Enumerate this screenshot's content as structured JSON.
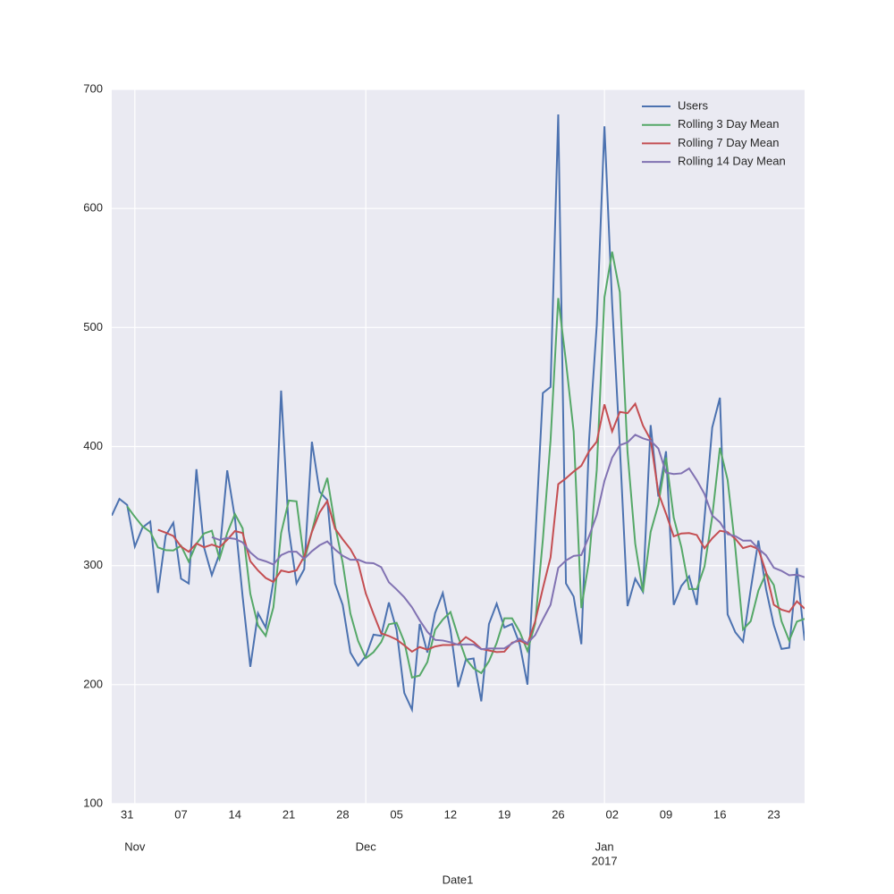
{
  "chart_data": {
    "type": "line",
    "xlabel": "Date1",
    "x": [
      "2016-10-29",
      "2016-10-30",
      "2016-10-31",
      "2016-11-01",
      "2016-11-02",
      "2016-11-03",
      "2016-11-04",
      "2016-11-05",
      "2016-11-06",
      "2016-11-07",
      "2016-11-08",
      "2016-11-09",
      "2016-11-10",
      "2016-11-11",
      "2016-11-12",
      "2016-11-13",
      "2016-11-14",
      "2016-11-15",
      "2016-11-16",
      "2016-11-17",
      "2016-11-18",
      "2016-11-19",
      "2016-11-20",
      "2016-11-21",
      "2016-11-22",
      "2016-11-23",
      "2016-11-24",
      "2016-11-25",
      "2016-11-26",
      "2016-11-27",
      "2016-11-28",
      "2016-11-29",
      "2016-11-30",
      "2016-12-01",
      "2016-12-02",
      "2016-12-03",
      "2016-12-04",
      "2016-12-05",
      "2016-12-06",
      "2016-12-07",
      "2016-12-08",
      "2016-12-09",
      "2016-12-10",
      "2016-12-11",
      "2016-12-12",
      "2016-12-13",
      "2016-12-14",
      "2016-12-15",
      "2016-12-16",
      "2016-12-17",
      "2016-12-18",
      "2016-12-19",
      "2016-12-20",
      "2016-12-21",
      "2016-12-22",
      "2016-12-23",
      "2016-12-24",
      "2016-12-25",
      "2016-12-26",
      "2016-12-27",
      "2016-12-28",
      "2016-12-29",
      "2016-12-30",
      "2016-12-31",
      "2017-01-01",
      "2017-01-02",
      "2017-01-03",
      "2017-01-04",
      "2017-01-05",
      "2017-01-06",
      "2017-01-07",
      "2017-01-08",
      "2017-01-09",
      "2017-01-10",
      "2017-01-11",
      "2017-01-12",
      "2017-01-13",
      "2017-01-14",
      "2017-01-15",
      "2017-01-16",
      "2017-01-17",
      "2017-01-18",
      "2017-01-19",
      "2017-01-20",
      "2017-01-21",
      "2017-01-22",
      "2017-01-23",
      "2017-01-24",
      "2017-01-25",
      "2017-01-26",
      "2017-01-27"
    ],
    "series": [
      {
        "name": "Users",
        "color": "#4c72b0",
        "values": [
          342,
          356,
          351,
          316,
          332,
          337,
          277,
          325,
          336,
          289,
          285,
          381,
          315,
          292,
          310,
          380,
          340,
          274,
          215,
          260,
          248,
          287,
          447,
          330,
          285,
          297,
          404,
          362,
          355,
          285,
          267,
          227,
          216,
          224,
          242,
          241,
          269,
          246,
          193,
          179,
          251,
          227,
          260,
          277,
          246,
          198,
          221,
          222,
          186,
          251,
          268,
          248,
          251,
          234,
          200,
          320,
          445,
          450,
          679,
          285,
          274,
          234,
          405,
          502,
          669,
          520,
          400,
          266,
          289,
          278,
          418,
          358,
          396,
          267,
          283,
          291,
          267,
          340,
          416,
          441,
          259,
          244,
          236,
          280,
          321,
          280,
          250,
          230,
          231,
          298,
          237
        ]
      },
      {
        "name": "Rolling 3 Day Mean",
        "color": "#55a868",
        "values": [
          null,
          null,
          349.7,
          341,
          333,
          328.3,
          315.3,
          313,
          312.7,
          316.7,
          303.3,
          318.3,
          327,
          329.3,
          305.7,
          327.3,
          343.3,
          331.3,
          276.3,
          249.7,
          241,
          265,
          327.3,
          354.7,
          354,
          304,
          328.7,
          354.3,
          373.7,
          334,
          302.3,
          259.7,
          236.7,
          222.3,
          227.3,
          235.7,
          250.7,
          252,
          236,
          206,
          207.7,
          219,
          246,
          254.7,
          261,
          240.3,
          221.7,
          213.7,
          209.7,
          219.7,
          235,
          255.7,
          255.7,
          244.3,
          228.3,
          251.3,
          321.7,
          405,
          524.7,
          471.3,
          412.7,
          264.3,
          304.3,
          380.3,
          525.3,
          563.7,
          529.7,
          395.3,
          318.3,
          277.7,
          328.3,
          351.3,
          390.7,
          340.3,
          315.3,
          280.3,
          280.3,
          299.3,
          341,
          399,
          372,
          314.7,
          246.3,
          253.3,
          279,
          293.7,
          283.7,
          253.3,
          237,
          253,
          255.3
        ]
      },
      {
        "name": "Rolling 7 Day Mean",
        "color": "#c44e52",
        "values": [
          null,
          null,
          null,
          null,
          null,
          null,
          330.1,
          327.7,
          324.9,
          316,
          311.6,
          318.6,
          315.4,
          317.6,
          315.4,
          321.7,
          329,
          327.4,
          303.7,
          295.9,
          289.6,
          286.3,
          295.9,
          294.4,
          296,
          307.7,
          328.3,
          344.6,
          354.3,
          331.1,
          322.1,
          313.9,
          302.3,
          276.6,
          259.4,
          243.1,
          240.9,
          237.9,
          233,
          227.7,
          231.6,
          229.4,
          232.1,
          233.3,
          233.3,
          234,
          240,
          235.9,
          230,
          228.7,
          227.4,
          227.7,
          235.3,
          237.1,
          234,
          253.1,
          280.9,
          306.9,
          368.4,
          373.3,
          379,
          383.9,
          396,
          404.1,
          435.4,
          412.7,
          429.1,
          428,
          435.9,
          417.7,
          405.7,
          361.3,
          343.6,
          324.6,
          327,
          327.3,
          325.7,
          314.6,
          322.9,
          329.3,
          328.1,
          322.6,
          314.7,
          316.6,
          313.9,
          294.4,
          267.1,
          263,
          261.1,
          270,
          263.9
        ]
      },
      {
        "name": "Rolling 14 Day Mean",
        "color": "#8172b2",
        "values": [
          null,
          null,
          null,
          null,
          null,
          null,
          null,
          null,
          null,
          null,
          null,
          null,
          null,
          323.9,
          321.6,
          323.3,
          322.5,
          319.5,
          311.1,
          305.6,
          303.6,
          300.9,
          308.8,
          311.7,
          311.7,
          305.7,
          312.1,
          317.1,
          320.3,
          313.5,
          308.3,
          304.9,
          305,
          302.4,
          302,
          298.7,
          286,
          280,
          273.4,
          265,
          254.1,
          244.4,
          237.6,
          237.1,
          235.6,
          233.5,
          233.9,
          233.7,
          229.7,
          230.4,
          230.4,
          230.5,
          234.6,
          238.6,
          234.9,
          241.6,
          254.8,
          267.1,
          298.1,
          304.3,
          308.1,
          308.9,
          324.6,
          342.5,
          371.1,
          390.6,
          401.2,
          403.5,
          409.9,
          406.9,
          404.9,
          398.4,
          378.1,
          376.9,
          377.5,
          381.6,
          371.7,
          360.1,
          342.1,
          336.4,
          326.4,
          324.8,
          321,
          321.1,
          314.2,
          308.6,
          298.2,
          295.6,
          291.9,
          292.4,
          290.2
        ]
      }
    ],
    "xlim": [
      "2016-10-29",
      "2017-01-27"
    ],
    "xticks": [
      {
        "value": "2016-10-31",
        "label": "31"
      },
      {
        "value": "2016-11-07",
        "label": "07"
      },
      {
        "value": "2016-11-14",
        "label": "14"
      },
      {
        "value": "2016-11-21",
        "label": "21"
      },
      {
        "value": "2016-11-28",
        "label": "28"
      },
      {
        "value": "2016-12-05",
        "label": "05"
      },
      {
        "value": "2016-12-12",
        "label": "12"
      },
      {
        "value": "2016-12-19",
        "label": "19"
      },
      {
        "value": "2016-12-26",
        "label": "26"
      },
      {
        "value": "2017-01-02",
        "label": "02"
      },
      {
        "value": "2017-01-09",
        "label": "09"
      },
      {
        "value": "2017-01-16",
        "label": "16"
      },
      {
        "value": "2017-01-23",
        "label": "23"
      }
    ],
    "xticks_major": [
      {
        "value": "2016-11-01",
        "label": "Nov"
      },
      {
        "value": "2016-12-01",
        "label": "Dec"
      },
      {
        "value": "2017-01-01",
        "label": "Jan",
        "sublabel": "2017"
      }
    ],
    "ylim": [
      100,
      700
    ],
    "yticks": [
      100,
      200,
      300,
      400,
      500,
      600,
      700
    ],
    "grid": true,
    "legend": "upper right"
  }
}
